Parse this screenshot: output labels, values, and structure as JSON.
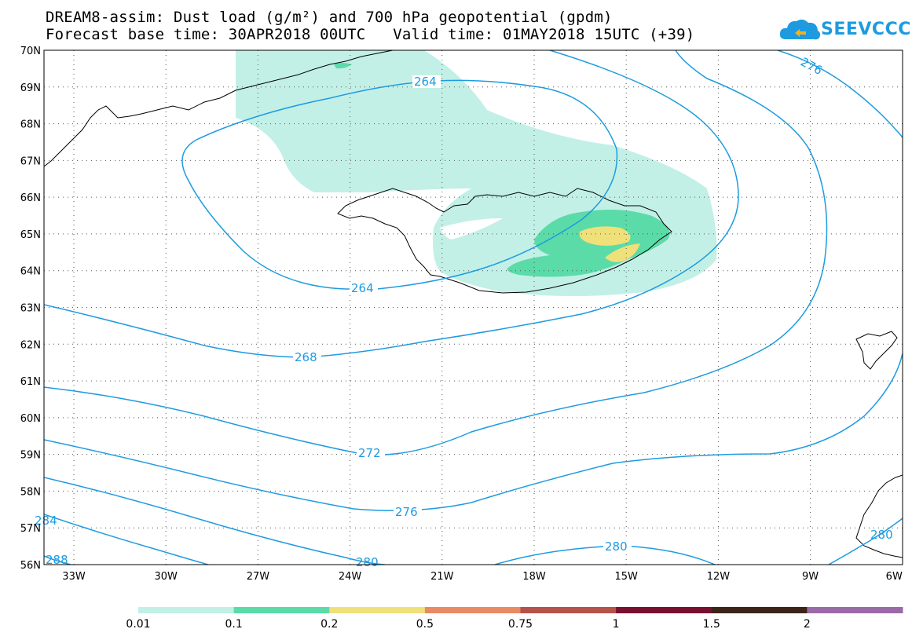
{
  "title": {
    "line1": "DREAM8-assim: Dust load (g/m²) and 700 hPa geopotential (gpdm)",
    "line2": "Forecast base time: 30APR2018 00UTC   Valid time: 01MAY2018 15UTC (+39)"
  },
  "logo": {
    "text": "SEEVCCC",
    "icon": "cloud-icon",
    "color": "#1e9be0"
  },
  "map": {
    "lat_labels": [
      "70N",
      "69N",
      "68N",
      "67N",
      "66N",
      "65N",
      "64N",
      "63N",
      "62N",
      "61N",
      "60N",
      "59N",
      "58N",
      "57N",
      "56N"
    ],
    "lon_labels": [
      "33W",
      "30W",
      "27W",
      "24W",
      "21W",
      "18W",
      "15W",
      "12W",
      "9W",
      "6W"
    ],
    "contour_color": "#1e9be0",
    "contour_labels": {
      "c264_top": "264",
      "c264_bottom": "264",
      "c268": "268",
      "c272": "272",
      "c276_mid": "276",
      "c276_top_right": "276",
      "c280_bottom": "280",
      "c280_left": "280",
      "c280_right": "280",
      "c284_left": "284",
      "c288_left": "288"
    },
    "dust_colors": {
      "lvl1": "#c2f0e6",
      "lvl2": "#5bdba8",
      "lvl3": "#f0e07a"
    }
  },
  "colorbar": {
    "segments": [
      {
        "color": "#c2f0e6"
      },
      {
        "color": "#5bdba8"
      },
      {
        "color": "#f0e07a"
      },
      {
        "color": "#e88a62"
      },
      {
        "color": "#b5524a"
      },
      {
        "color": "#7a1030"
      },
      {
        "color": "#3d2418"
      },
      {
        "color": "#9a6aa8"
      }
    ],
    "labels": [
      "0.01",
      "0.1",
      "0.2",
      "0.5",
      "0.75",
      "1",
      "1.5",
      "2"
    ]
  }
}
